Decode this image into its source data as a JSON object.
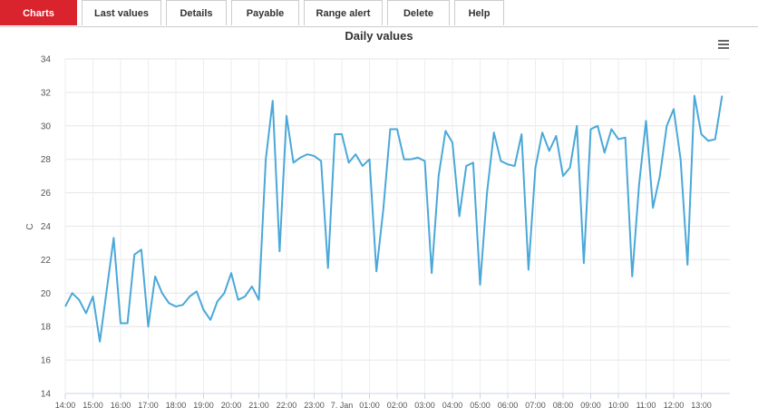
{
  "tabs": [
    "Charts",
    "Last values",
    "Details",
    "Payable",
    "Range alert",
    "Delete",
    "Help"
  ],
  "chart_data": {
    "type": "line",
    "title": "Daily values",
    "y_label": "C",
    "x": [
      "14:00",
      "14:15",
      "14:30",
      "14:45",
      "15:00",
      "15:15",
      "15:30",
      "15:45",
      "16:00",
      "16:15",
      "16:30",
      "16:45",
      "17:00",
      "17:15",
      "17:30",
      "17:45",
      "18:00",
      "18:15",
      "18:30",
      "18:45",
      "19:00",
      "19:15",
      "19:30",
      "19:45",
      "20:00",
      "20:15",
      "20:30",
      "20:45",
      "21:00",
      "21:15",
      "21:30",
      "21:45",
      "22:00",
      "22:15",
      "22:30",
      "22:45",
      "23:00",
      "23:15",
      "23:30",
      "23:45",
      "00:00",
      "00:15",
      "00:30",
      "00:45",
      "01:00",
      "01:15",
      "01:30",
      "01:45",
      "02:00",
      "02:15",
      "02:30",
      "02:45",
      "03:00",
      "03:15",
      "03:30",
      "03:45",
      "04:00",
      "04:15",
      "04:30",
      "04:45",
      "05:00",
      "05:15",
      "05:30",
      "05:45",
      "06:00",
      "06:15",
      "06:30",
      "06:45",
      "07:00",
      "07:15",
      "07:30",
      "07:45",
      "08:00",
      "08:15",
      "08:30",
      "08:45",
      "09:00",
      "09:15",
      "09:30",
      "09:45",
      "10:00",
      "10:15",
      "10:30",
      "10:45",
      "11:00",
      "11:15",
      "11:30",
      "11:45",
      "12:00",
      "12:15",
      "12:30",
      "12:45",
      "13:00",
      "13:15",
      "13:30",
      "13:45"
    ],
    "series": [
      {
        "name": "C",
        "color": "#4aa8d8",
        "values": [
          19.2,
          20.0,
          19.6,
          18.8,
          19.8,
          17.1,
          20.2,
          23.3,
          18.2,
          18.2,
          22.3,
          22.6,
          18.0,
          21.0,
          20.0,
          19.4,
          19.2,
          19.3,
          19.8,
          20.1,
          19.0,
          18.4,
          19.5,
          20.0,
          21.2,
          19.6,
          19.8,
          20.4,
          19.6,
          28.0,
          31.5,
          22.5,
          30.6,
          27.8,
          28.1,
          28.3,
          28.2,
          27.9,
          21.5,
          29.5,
          29.5,
          27.8,
          28.3,
          27.6,
          28.0,
          21.3,
          25.0,
          29.8,
          29.8,
          28.0,
          28.0,
          28.1,
          27.9,
          21.2,
          27.0,
          29.7,
          29.0,
          24.6,
          27.6,
          27.8,
          20.5,
          26.0,
          29.6,
          27.9,
          27.7,
          27.6,
          29.5,
          21.4,
          27.5,
          29.6,
          28.5,
          29.4,
          27.0,
          27.5,
          30.0,
          21.8,
          29.8,
          30.0,
          28.4,
          29.8,
          29.2,
          29.3,
          21.0,
          26.5,
          30.3,
          25.1,
          27.0,
          30.0,
          31.0,
          28.0,
          21.7,
          31.8,
          29.5,
          29.1,
          29.2,
          31.8
        ]
      }
    ],
    "ylim": [
      14,
      34
    ],
    "yticks": [
      14,
      16,
      18,
      20,
      22,
      24,
      26,
      28,
      30,
      32,
      34
    ],
    "xticks": [
      "14:00",
      "15:00",
      "16:00",
      "17:00",
      "18:00",
      "19:00",
      "20:00",
      "21:00",
      "22:00",
      "23:00",
      {
        "value": "00:00",
        "label": "7. Jan"
      },
      "01:00",
      "02:00",
      "03:00",
      "04:00",
      "05:00",
      "06:00",
      "07:00",
      "08:00",
      "09:00",
      "10:00",
      "11:00",
      "12:00",
      "13:00"
    ],
    "grid": true
  }
}
